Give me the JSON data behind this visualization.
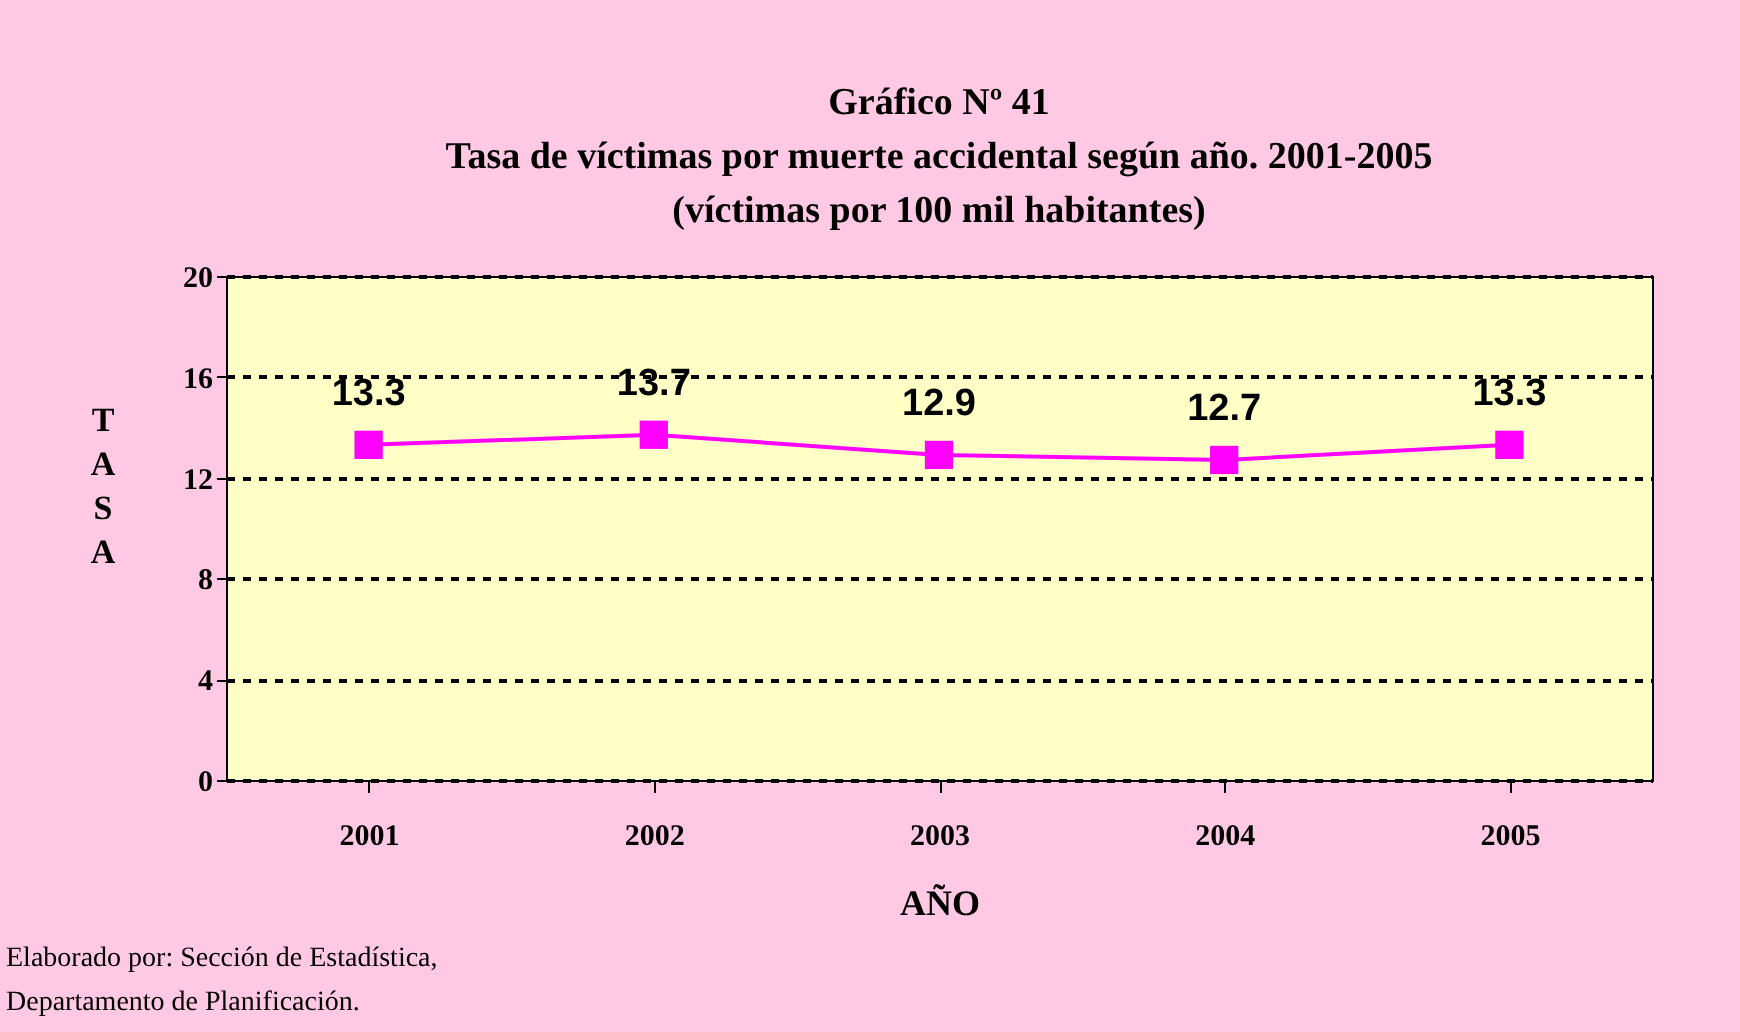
{
  "chart_data": {
    "type": "line",
    "title": "Gráfico Nº 41",
    "subtitle": "Tasa de víctimas por muerte accidental según año. 2001-2005\n(víctimas por 100 mil habitantes)",
    "xlabel": "AÑO",
    "ylabel": "TASA",
    "categories": [
      "2001",
      "2002",
      "2003",
      "2004",
      "2005"
    ],
    "series": [
      {
        "color": "#ff00ff",
        "values": [
          13.3,
          13.7,
          12.9,
          12.7,
          13.3
        ]
      }
    ],
    "ylim": [
      0,
      20
    ],
    "yticks": [
      0,
      4,
      8,
      12,
      16,
      20
    ],
    "grid": "y",
    "marker": "square",
    "data_labels": true,
    "annotations": [
      "Elaborado por: Sección de Estadística,",
      "Departamento de Planificación."
    ]
  }
}
